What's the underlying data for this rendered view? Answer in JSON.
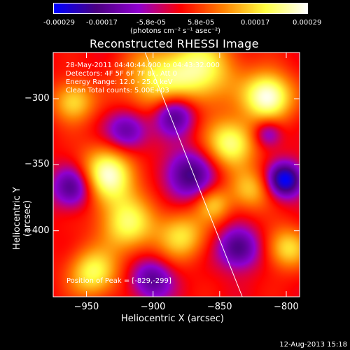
{
  "colorbar": {
    "labels": [
      "-0.00029",
      "-0.00017",
      "-5.8e-05",
      "5.8e-05",
      "0.00017",
      "0.00029"
    ],
    "unit": "(photons cm⁻² s⁻¹ asec⁻²)"
  },
  "title": "Reconstructed RHESSI Image",
  "info": {
    "time": "28-May-2011 04:40:44.000 to 04:43:32.000",
    "detectors": "Detectors: 4F 5F 6F 7F 8F, Att 0",
    "energy": "Energy Range: 12.0 - 25.0 keV",
    "clean": "Clean    Total counts: 5.00E+03"
  },
  "peak_label": "Position of Peak = [-829,-299]",
  "footer_date": "12-Aug-2013 15:18",
  "chart_data": {
    "type": "heatmap",
    "title": "Reconstructed RHESSI Image",
    "xlabel": "Heliocentric X (arcsec)",
    "ylabel": "Heliocentric Y (arcsec)",
    "xlim": [
      -975,
      -790
    ],
    "ylim": [
      -450,
      -265
    ],
    "xticks": [
      -950,
      -900,
      -850,
      -800
    ],
    "yticks": [
      -300,
      -350,
      -400
    ],
    "colorbar_range": [
      -0.00029,
      0.00029
    ],
    "colormap": [
      "#0000ff",
      "#4b0082",
      "#9000d0",
      "#ff0000",
      "#ff8000",
      "#ffff40",
      "#ffffff"
    ],
    "limb_line": [
      [
        -906,
        -265
      ],
      [
        -833,
        -450
      ]
    ]
  }
}
